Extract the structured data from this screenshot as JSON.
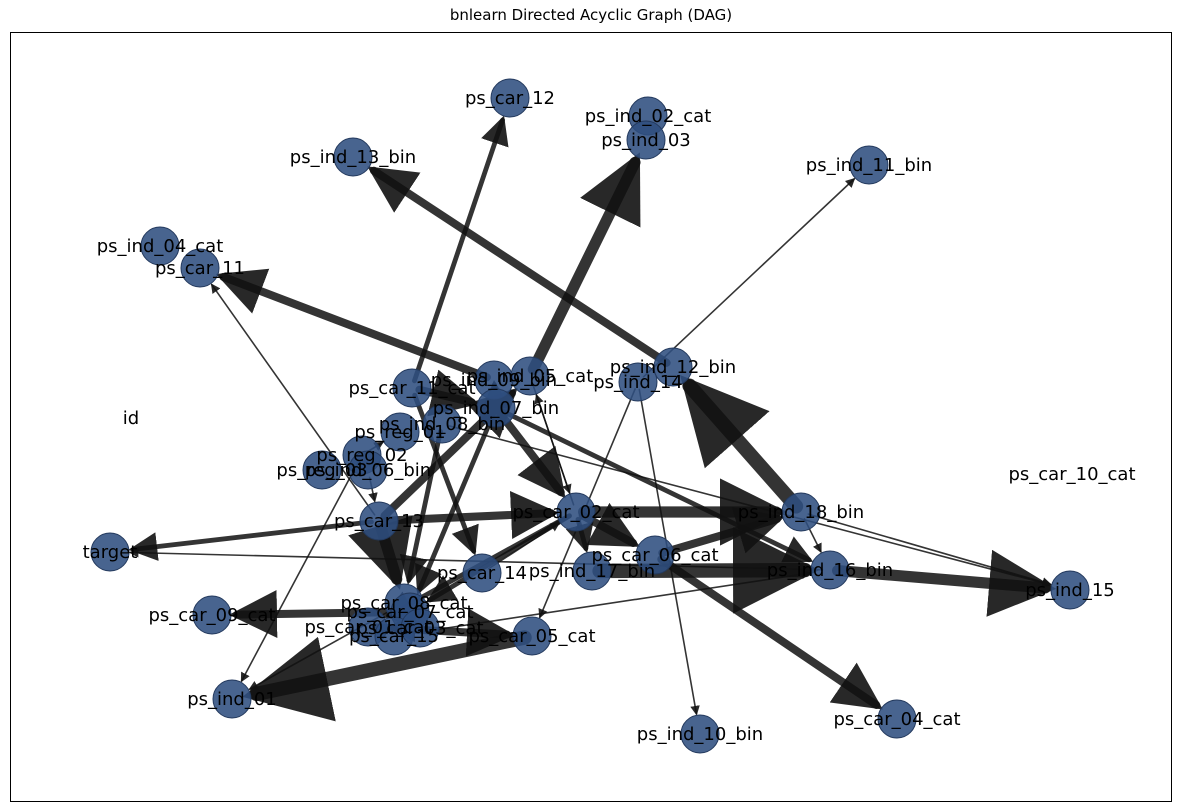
{
  "title": "bnlearn Directed Acyclic Graph (DAG)",
  "graph": {
    "nodes": [
      {
        "id": "ps_car_12",
        "label": "ps_car_12"
      },
      {
        "id": "ps_ind_02_cat",
        "label": "ps_ind_02_cat"
      },
      {
        "id": "ps_ind_03",
        "label": "ps_ind_03"
      },
      {
        "id": "ps_ind_13_bin",
        "label": "ps_ind_13_bin"
      },
      {
        "id": "ps_ind_11_bin",
        "label": "ps_ind_11_bin"
      },
      {
        "id": "ps_ind_04_cat",
        "label": "ps_ind_04_cat"
      },
      {
        "id": "ps_car_11",
        "label": "ps_car_11"
      },
      {
        "id": "ps_ind_12_bin",
        "label": "ps_ind_12_bin"
      },
      {
        "id": "ps_ind_14",
        "label": "ps_ind_14"
      },
      {
        "id": "ps_car_11_cat",
        "label": "ps_car_11_cat"
      },
      {
        "id": "ps_ind_09_bin",
        "label": "ps_ind_09_bin"
      },
      {
        "id": "ps_ind_05_cat",
        "label": "ps_ind_05_cat"
      },
      {
        "id": "ps_ind_07_bin",
        "label": "ps_ind_07_bin"
      },
      {
        "id": "ps_ind_08_bin",
        "label": "ps_ind_08_bin"
      },
      {
        "id": "ps_reg_01",
        "label": "ps_reg_01"
      },
      {
        "id": "ps_reg_02",
        "label": "ps_reg_02"
      },
      {
        "id": "ps_reg_03",
        "label": "ps_reg_03"
      },
      {
        "id": "ps_ind_06_bin",
        "label": "ps_ind_06_bin"
      },
      {
        "id": "id",
        "label": "id"
      },
      {
        "id": "ps_car_10_cat",
        "label": "ps_car_10_cat"
      },
      {
        "id": "ps_car_13",
        "label": "ps_car_13"
      },
      {
        "id": "ps_car_02_cat",
        "label": "ps_car_02_cat"
      },
      {
        "id": "ps_ind_18_bin",
        "label": "ps_ind_18_bin"
      },
      {
        "id": "target",
        "label": "target"
      },
      {
        "id": "ps_car_06_cat",
        "label": "ps_car_06_cat"
      },
      {
        "id": "ps_car_14",
        "label": "ps_car_14"
      },
      {
        "id": "ps_ind_17_bin",
        "label": "ps_ind_17_bin"
      },
      {
        "id": "ps_ind_16_bin",
        "label": "ps_ind_16_bin"
      },
      {
        "id": "ps_ind_15",
        "label": "ps_ind_15"
      },
      {
        "id": "ps_car_08_cat",
        "label": "ps_car_08_cat"
      },
      {
        "id": "ps_car_07_cat",
        "label": "ps_car_07_cat"
      },
      {
        "id": "ps_car_09_cat",
        "label": "ps_car_09_cat"
      },
      {
        "id": "ps_car_01_cat",
        "label": "ps_car_01_cat"
      },
      {
        "id": "ps_car_15",
        "label": "ps_car_15"
      },
      {
        "id": "ps_car_05_cat",
        "label": "ps_car_05_cat"
      },
      {
        "id": "ps_ind_01",
        "label": "ps_ind_01"
      },
      {
        "id": "ps_ind_10_bin",
        "label": "ps_ind_10_bin"
      },
      {
        "id": "ps_car_04_cat",
        "label": "ps_car_04_cat"
      },
      {
        "id": "ps_car_03_cat",
        "label": "ps_car_03_cat"
      }
    ],
    "edges": [
      {
        "source": "ps_car_11_cat",
        "target": "ps_car_12",
        "weight": 2
      },
      {
        "source": "ps_ind_05_cat",
        "target": "ps_ind_03",
        "weight": 4
      },
      {
        "source": "ps_ind_12_bin",
        "target": "ps_ind_13_bin",
        "weight": 3
      },
      {
        "source": "ps_ind_14",
        "target": "ps_ind_11_bin",
        "weight": 1
      },
      {
        "source": "ps_ind_09_bin",
        "target": "ps_car_11",
        "weight": 3
      },
      {
        "source": "ps_car_13",
        "target": "ps_car_11",
        "weight": 1
      },
      {
        "source": "ps_ind_18_bin",
        "target": "ps_ind_12_bin",
        "weight": 5
      },
      {
        "source": "ps_car_02_cat",
        "target": "ps_ind_05_cat",
        "weight": 1
      },
      {
        "source": "ps_car_11_cat",
        "target": "ps_ind_07_bin",
        "weight": 3
      },
      {
        "source": "ps_ind_07_bin",
        "target": "ps_car_02_cat",
        "weight": 3
      },
      {
        "source": "ps_ind_07_bin",
        "target": "ps_ind_16_bin",
        "weight": 2
      },
      {
        "source": "ps_car_11_cat",
        "target": "ps_car_14",
        "weight": 2
      },
      {
        "source": "ps_ind_08_bin",
        "target": "ps_car_08_cat",
        "weight": 2
      },
      {
        "source": "ps_car_13",
        "target": "ps_car_08_cat",
        "weight": 4
      },
      {
        "source": "ps_car_13",
        "target": "ps_car_02_cat",
        "weight": 3
      },
      {
        "source": "ps_car_13",
        "target": "ps_ind_05_cat",
        "weight": 3
      },
      {
        "source": "ps_ind_06_bin",
        "target": "ps_car_13",
        "weight": 1
      },
      {
        "source": "ps_reg_02",
        "target": "ps_reg_01",
        "weight": 1
      },
      {
        "source": "ps_reg_02",
        "target": "ps_ind_01",
        "weight": 1
      },
      {
        "source": "ps_car_13",
        "target": "target",
        "weight": 2
      },
      {
        "source": "ps_ind_16_bin",
        "target": "target",
        "weight": 1
      },
      {
        "source": "ps_car_02_cat",
        "target": "ps_ind_18_bin",
        "weight": 4
      },
      {
        "source": "ps_car_02_cat",
        "target": "ps_car_06_cat",
        "weight": 3
      },
      {
        "source": "ps_car_06_cat",
        "target": "ps_ind_18_bin",
        "weight": 3
      },
      {
        "source": "ps_ind_17_bin",
        "target": "ps_ind_16_bin",
        "weight": 5
      },
      {
        "source": "ps_ind_16_bin",
        "target": "ps_ind_15",
        "weight": 4
      },
      {
        "source": "ps_ind_18_bin",
        "target": "ps_ind_15",
        "weight": 1
      },
      {
        "source": "ps_ind_08_bin",
        "target": "ps_ind_15",
        "weight": 1
      },
      {
        "source": "ps_ind_18_bin",
        "target": "ps_ind_16_bin",
        "weight": 1
      },
      {
        "source": "ps_car_06_cat",
        "target": "ps_car_04_cat",
        "weight": 3
      },
      {
        "source": "ps_ind_14",
        "target": "ps_ind_10_bin",
        "weight": 1
      },
      {
        "source": "ps_ind_14",
        "target": "ps_car_05_cat",
        "weight": 1
      },
      {
        "source": "ps_car_02_cat",
        "target": "ps_car_07_cat",
        "weight": 2
      },
      {
        "source": "ps_car_02_cat",
        "target": "ps_car_01_cat",
        "weight": 2
      },
      {
        "source": "ps_car_05_cat",
        "target": "ps_ind_01",
        "weight": 5
      },
      {
        "source": "ps_car_07_cat",
        "target": "ps_car_09_cat",
        "weight": 3
      },
      {
        "source": "ps_car_01_cat",
        "target": "ps_car_05_cat",
        "weight": 3
      },
      {
        "source": "ps_car_14",
        "target": "ps_car_02_cat",
        "weight": 1
      },
      {
        "source": "ps_car_08_cat",
        "target": "ps_ind_01",
        "weight": 1
      },
      {
        "source": "ps_car_15",
        "target": "ps_ind_16_bin",
        "weight": 1
      },
      {
        "source": "ps_ind_07_bin",
        "target": "ps_car_07_cat",
        "weight": 2
      },
      {
        "source": "ps_ind_09_bin",
        "target": "ps_ind_07_bin",
        "weight": 2
      },
      {
        "source": "ps_car_02_cat",
        "target": "ps_ind_17_bin",
        "weight": 2
      },
      {
        "source": "ps_ind_05_cat",
        "target": "ps_car_02_cat",
        "weight": 1
      },
      {
        "source": "ps_car_03_cat",
        "target": "ps_car_01_cat",
        "weight": 2
      }
    ]
  }
}
